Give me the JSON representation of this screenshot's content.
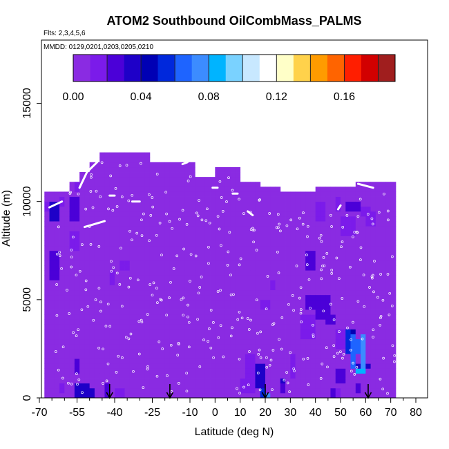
{
  "chart_data": {
    "type": "heatmap",
    "title": "ATOM2 Southbound OilCombMass_PALMS",
    "flights_note": "Flts: 2,3,4,5,6",
    "dates_note": "MMDD: 0129,0201,0203,0205,0210",
    "xlabel": "Latitude (deg N)",
    "ylabel": "Altitude (m)",
    "xlim": [
      -70,
      80
    ],
    "ylim": [
      0,
      17500
    ],
    "x_ticks": [
      -70,
      -55,
      -40,
      -25,
      -10,
      0,
      10,
      20,
      30,
      40,
      50,
      60,
      70,
      80
    ],
    "x_tick_labels": [
      "-70",
      "-55",
      "-40",
      "-25",
      "-10",
      "0",
      "10",
      "20",
      "30",
      "40",
      "50",
      "60",
      "70",
      "80"
    ],
    "x_minor_ticks": [
      -65,
      -60,
      -50,
      -45,
      -35,
      -30,
      -20,
      -15,
      -5,
      5,
      15,
      25,
      35,
      45,
      55,
      65,
      75
    ],
    "y_ticks": [
      0,
      5000,
      10000,
      15000
    ],
    "y_tick_labels": [
      "0",
      "5000",
      "10000",
      "15000"
    ],
    "colorbar": {
      "range": [
        0,
        0.19
      ],
      "tick_values": [
        0,
        0.04,
        0.08,
        0.12,
        0.16
      ],
      "tick_labels": [
        "0.00",
        "0.04",
        "0.08",
        "0.12",
        "0.16"
      ],
      "steps": 19,
      "colors": [
        "#8a2be2",
        "#7b1bea",
        "#4b00d8",
        "#1e00c8",
        "#0000b4",
        "#0028dc",
        "#1e64ff",
        "#3c8cff",
        "#00b4ff",
        "#7ad2ff",
        "#c8e8ff",
        "#ffffff",
        "#ffffc8",
        "#ffd24b",
        "#ff9b00",
        "#ff6400",
        "#ff1e00",
        "#d20000",
        "#a01e1e"
      ]
    },
    "cell_size": {
      "lat": 2,
      "alt": 250
    },
    "background_value": 0.002,
    "top_profile": [
      [
        -68,
        10500
      ],
      [
        -62,
        10500
      ],
      [
        -58,
        11000
      ],
      [
        -54,
        11500
      ],
      [
        -50,
        12000
      ],
      [
        -46,
        12500
      ],
      [
        -28,
        12500
      ],
      [
        -26,
        12000
      ],
      [
        -16,
        12000
      ],
      [
        -8,
        11250
      ],
      [
        -4,
        11250
      ],
      [
        0,
        11750
      ],
      [
        4,
        11750
      ],
      [
        10,
        11000
      ],
      [
        14,
        11000
      ],
      [
        18,
        10750
      ],
      [
        22,
        10750
      ],
      [
        26,
        10500
      ],
      [
        34,
        10500
      ],
      [
        40,
        10750
      ],
      [
        46,
        10750
      ],
      [
        56,
        11000
      ],
      [
        64,
        11000
      ],
      [
        70,
        11000
      ]
    ],
    "patches": [
      [
        -68,
        -66,
        9500,
        10000,
        0.018
      ],
      [
        -66,
        -62,
        9000,
        10000,
        0.03
      ],
      [
        -62,
        -60,
        9750,
        10250,
        0.016
      ],
      [
        -66,
        -62,
        6000,
        7500,
        0.028
      ],
      [
        -58,
        -54,
        9000,
        10250,
        0.026
      ],
      [
        -58,
        -54,
        7500,
        8500,
        0.014
      ],
      [
        -56,
        -54,
        10500,
        11500,
        0.012
      ],
      [
        -42,
        -40,
        5750,
        6500,
        0.016
      ],
      [
        -38,
        -34,
        6500,
        7000,
        0.01
      ],
      [
        10,
        16,
        250,
        1000,
        0.018
      ],
      [
        12,
        16,
        1000,
        2250,
        0.014
      ],
      [
        16,
        20,
        500,
        1750,
        0.03
      ],
      [
        18,
        20,
        0,
        500,
        0.05
      ],
      [
        20,
        22,
        0,
        250,
        0.07
      ],
      [
        26,
        28,
        250,
        750,
        0.024
      ],
      [
        26,
        28,
        750,
        1000,
        0.036
      ],
      [
        30,
        32,
        1000,
        2250,
        0.012
      ],
      [
        36,
        46,
        4500,
        5250,
        0.026
      ],
      [
        40,
        46,
        4000,
        4500,
        0.022
      ],
      [
        34,
        40,
        3000,
        4250,
        0.016
      ],
      [
        44,
        48,
        3750,
        4250,
        0.024
      ],
      [
        48,
        54,
        2500,
        3500,
        0.018
      ],
      [
        52,
        54,
        2250,
        3500,
        0.056
      ],
      [
        54,
        56,
        1500,
        3250,
        0.066
      ],
      [
        54,
        56,
        3250,
        3500,
        0.048
      ],
      [
        56,
        58,
        2250,
        3000,
        0.06
      ],
      [
        58,
        60,
        1500,
        3250,
        0.075
      ],
      [
        56,
        60,
        1250,
        1500,
        0.088
      ],
      [
        56,
        62,
        1500,
        1750,
        0.03
      ],
      [
        48,
        52,
        750,
        1500,
        0.024
      ],
      [
        46,
        48,
        0,
        500,
        0.024
      ],
      [
        48,
        50,
        0,
        500,
        0.016
      ],
      [
        56,
        58,
        250,
        750,
        0.028
      ],
      [
        50,
        56,
        8250,
        9250,
        0.018
      ],
      [
        52,
        58,
        9500,
        10000,
        0.026
      ],
      [
        58,
        62,
        9250,
        9750,
        0.018
      ],
      [
        60,
        64,
        8750,
        9500,
        0.014
      ],
      [
        48,
        50,
        9500,
        10250,
        0.014
      ],
      [
        40,
        44,
        9000,
        10000,
        0.012
      ],
      [
        36,
        40,
        6500,
        7500,
        0.02
      ],
      [
        22,
        24,
        5500,
        6000,
        0.018
      ],
      [
        18,
        22,
        4500,
        5000,
        0.014
      ],
      [
        -56,
        -54,
        1250,
        2000,
        0.024
      ],
      [
        -56,
        -50,
        0,
        750,
        0.03
      ],
      [
        -50,
        -48,
        0,
        500,
        0.036
      ],
      [
        -44,
        -42,
        0,
        750,
        0.02
      ],
      [
        -40,
        -36,
        0,
        500,
        0.018
      ],
      [
        -62,
        -60,
        250,
        750,
        0.014
      ]
    ],
    "flight_tracks": [
      [
        [
          -66,
          9700
        ],
        [
          -61,
          10000
        ]
      ],
      [
        [
          -54,
          10700
        ],
        [
          -51,
          11500
        ],
        [
          -47,
          12000
        ]
      ],
      [
        [
          -52,
          8700
        ],
        [
          -44,
          9000
        ]
      ],
      [
        [
          -42,
          10300
        ],
        [
          -40,
          10300
        ]
      ],
      [
        [
          -33,
          10000
        ],
        [
          -30,
          10000
        ]
      ],
      [
        [
          -13,
          11900
        ],
        [
          -11,
          12000
        ]
      ],
      [
        [
          -1,
          10700
        ],
        [
          1,
          10700
        ]
      ],
      [
        [
          7,
          10400
        ],
        [
          9,
          10400
        ]
      ],
      [
        [
          13,
          9500
        ],
        [
          15,
          9300
        ]
      ],
      [
        [
          49,
          9600
        ],
        [
          50,
          9800
        ]
      ],
      [
        [
          57,
          10900
        ],
        [
          63,
          10700
        ]
      ]
    ],
    "profile_columns": [
      -62,
      -58,
      -54,
      -50,
      -46,
      -42,
      -38,
      -34,
      -30,
      -26,
      -22,
      -18,
      -14,
      -10,
      -6,
      -2,
      2,
      6,
      10,
      14,
      18,
      22,
      26,
      30,
      34,
      38,
      42,
      46,
      50,
      54,
      58,
      62,
      66,
      70
    ],
    "arrows_lat": [
      -42,
      -18,
      20,
      61
    ]
  }
}
